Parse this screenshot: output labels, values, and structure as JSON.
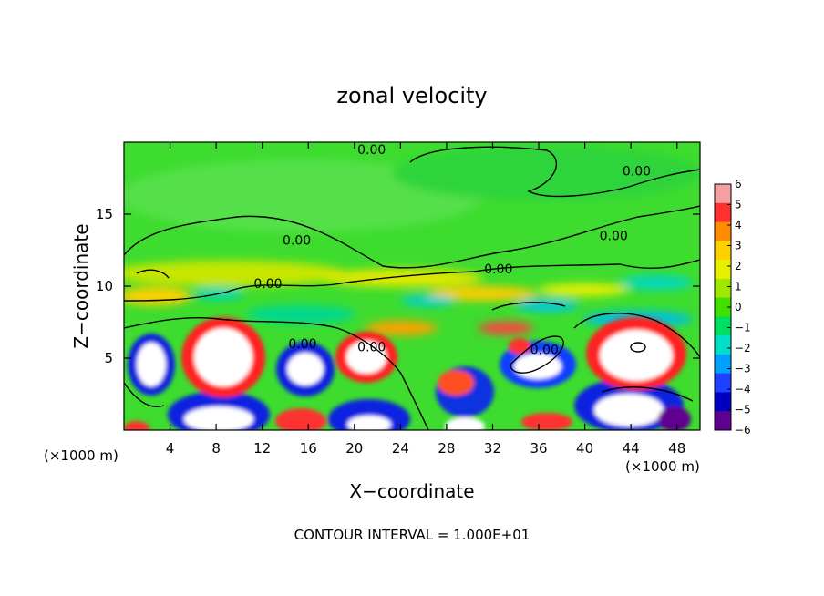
{
  "chart_data": {
    "type": "heatmap",
    "title": "zonal velocity",
    "xlabel": "X−coordinate",
    "ylabel": "Z−coordinate",
    "x_unit_left": "(×1000 m)",
    "x_unit_right": "(×1000 m)",
    "footer": "CONTOUR INTERVAL = 1.000E+01",
    "xlim": [
      0,
      50
    ],
    "ylim": [
      0,
      20
    ],
    "x_ticks": [
      4,
      8,
      12,
      16,
      20,
      24,
      28,
      32,
      36,
      40,
      44,
      48
    ],
    "x_tick_labels": [
      "4",
      "8",
      "12",
      "16",
      "20",
      "24",
      "28",
      "32",
      "36",
      "40",
      "44",
      "48"
    ],
    "y_ticks": [
      5,
      10,
      15
    ],
    "y_tick_labels": [
      "5",
      "10",
      "15"
    ],
    "colorbar": {
      "min": -6,
      "max": 6,
      "labels": [
        "6",
        "5",
        "4",
        "3",
        "2",
        "1",
        "0",
        "−1",
        "−2",
        "−3",
        "−4",
        "−5",
        "−6"
      ],
      "colors": [
        "#f4a0a0",
        "#ff3030",
        "#ff8c00",
        "#ffd000",
        "#e8f000",
        "#a0e800",
        "#40e000",
        "#00e060",
        "#00e0c8",
        "#00a0ff",
        "#2040ff",
        "#0000c0",
        "#600090"
      ]
    },
    "contour_labels": [
      {
        "text": "0.00",
        "x": 21.5,
        "y": 19.5
      },
      {
        "text": "0.00",
        "x": 44.5,
        "y": 18.0
      },
      {
        "text": "0.00",
        "x": 15.0,
        "y": 13.2
      },
      {
        "text": "0.00",
        "x": 42.5,
        "y": 13.5
      },
      {
        "text": "0.00",
        "x": 32.5,
        "y": 11.2
      },
      {
        "text": "0.00",
        "x": 12.5,
        "y": 10.2
      },
      {
        "text": "0.00",
        "x": 15.5,
        "y": 6.0
      },
      {
        "text": "0.00",
        "x": 21.5,
        "y": 5.8
      },
      {
        "text": "0.00",
        "x": 36.5,
        "y": 5.6
      }
    ]
  }
}
